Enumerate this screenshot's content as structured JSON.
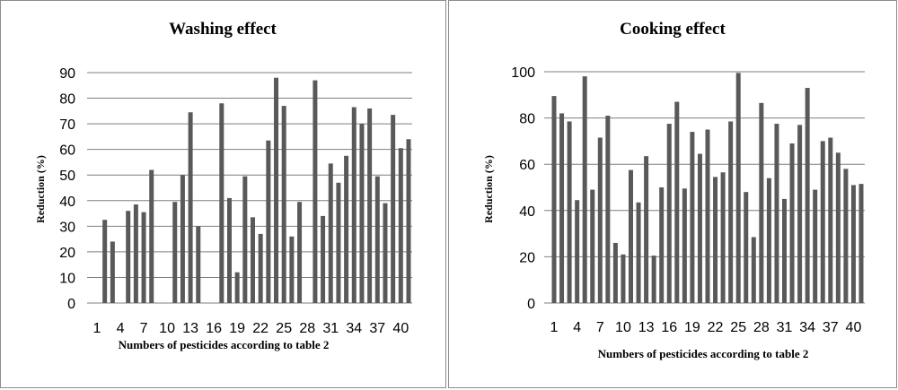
{
  "chart_data": [
    {
      "type": "bar",
      "title": "Washing effect",
      "xlabel": "Numbers of pesticides according to table 2",
      "ylabel": "Reduction (%)",
      "ylim": [
        0,
        90
      ],
      "yticks": [
        0,
        10,
        20,
        30,
        40,
        50,
        60,
        70,
        80,
        90
      ],
      "xtick_labels": [
        "1",
        "4",
        "7",
        "10",
        "13",
        "16",
        "19",
        "22",
        "25",
        "28",
        "31",
        "34",
        "37",
        "40"
      ],
      "grid": true,
      "categories": [
        1,
        2,
        3,
        4,
        5,
        6,
        7,
        8,
        9,
        10,
        11,
        12,
        13,
        14,
        15,
        16,
        17,
        18,
        19,
        20,
        21,
        22,
        23,
        24,
        25,
        26,
        27,
        28,
        29,
        30,
        31,
        32,
        33,
        34,
        35,
        36,
        37,
        38,
        39,
        40,
        41
      ],
      "values": [
        0,
        32.5,
        24,
        0,
        36,
        38.5,
        35.5,
        52,
        0,
        0,
        39.5,
        50,
        74.5,
        30,
        0,
        0,
        78,
        41,
        12,
        49.5,
        33.5,
        27,
        63.5,
        88,
        77,
        26,
        39.5,
        0,
        87,
        34,
        54.5,
        47,
        57.5,
        76.5,
        70,
        76,
        49.5,
        39,
        73.5,
        60.5,
        64
      ]
    },
    {
      "type": "bar",
      "title": "Cooking effect",
      "xlabel": "Numbers of pesticides  according to table 2",
      "ylabel": "Reduction (%)",
      "ylim": [
        0,
        100
      ],
      "yticks": [
        0,
        20,
        40,
        60,
        80,
        100
      ],
      "xtick_labels": [
        "1",
        "4",
        "7",
        "10",
        "13",
        "16",
        "19",
        "22",
        "25",
        "28",
        "31",
        "34",
        "37",
        "40"
      ],
      "grid": true,
      "categories": [
        1,
        2,
        3,
        4,
        5,
        6,
        7,
        8,
        9,
        10,
        11,
        12,
        13,
        14,
        15,
        16,
        17,
        18,
        19,
        20,
        21,
        22,
        23,
        24,
        25,
        26,
        27,
        28,
        29,
        30,
        31,
        32,
        33,
        34,
        35,
        36,
        37,
        38,
        39,
        40,
        41
      ],
      "values": [
        89.5,
        82,
        78.5,
        44.5,
        98,
        49,
        71.5,
        81,
        26,
        21,
        57.5,
        43.5,
        63.5,
        20.5,
        50,
        77.5,
        87,
        49.5,
        74,
        64.5,
        75,
        54.5,
        56.5,
        78.5,
        99.5,
        48,
        28.5,
        86.5,
        54,
        77.5,
        45,
        69,
        77,
        93,
        49,
        70,
        71.5,
        65,
        58,
        51,
        51.5
      ]
    }
  ]
}
